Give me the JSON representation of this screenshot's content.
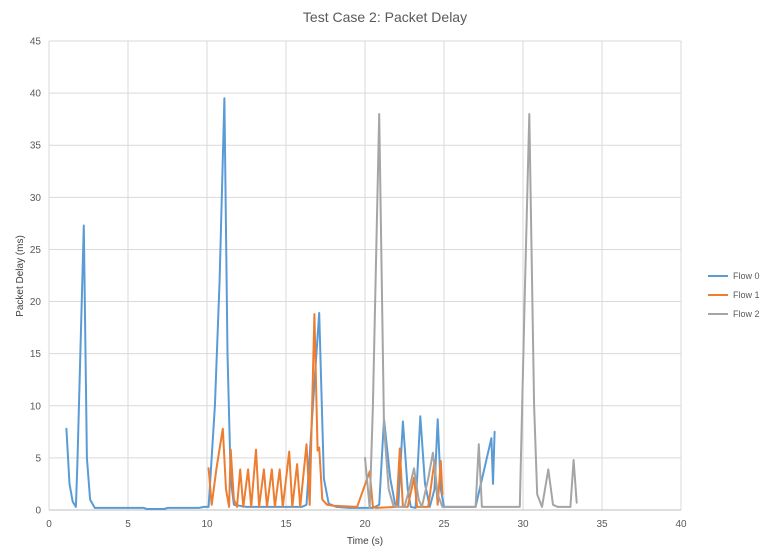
{
  "chart_data": {
    "type": "line",
    "title": "Test Case 2: Packet Delay",
    "xlabel": "Time (s)",
    "ylabel": "Packet Delay (ms)",
    "xlim": [
      0,
      40
    ],
    "ylim": [
      0,
      45
    ],
    "xticks": [
      0,
      5,
      10,
      15,
      20,
      25,
      30,
      35,
      40
    ],
    "yticks": [
      0,
      5,
      10,
      15,
      20,
      25,
      30,
      35,
      40,
      45
    ],
    "grid": true,
    "legend_position": "right",
    "series": [
      {
        "name": "Flow 0",
        "color": "#5B9BD5",
        "points": [
          [
            1.1,
            7.8
          ],
          [
            1.3,
            2.5
          ],
          [
            1.5,
            0.8
          ],
          [
            1.7,
            0.3
          ],
          [
            1.8,
            4.5
          ],
          [
            2.2,
            27.3
          ],
          [
            2.4,
            5.0
          ],
          [
            2.6,
            1.0
          ],
          [
            2.9,
            0.2
          ],
          [
            4.0,
            0.2
          ],
          [
            6.0,
            0.2
          ],
          [
            6.2,
            0.1
          ],
          [
            7.3,
            0.1
          ],
          [
            7.5,
            0.2
          ],
          [
            8.5,
            0.2
          ],
          [
            9.5,
            0.2
          ],
          [
            9.8,
            0.3
          ],
          [
            10.1,
            0.3
          ],
          [
            10.5,
            10.0
          ],
          [
            10.8,
            22.0
          ],
          [
            11.1,
            39.5
          ],
          [
            11.3,
            15.0
          ],
          [
            11.5,
            3.0
          ],
          [
            11.7,
            0.5
          ],
          [
            12.5,
            0.3
          ],
          [
            14.0,
            0.3
          ],
          [
            15.5,
            0.3
          ],
          [
            16.0,
            0.3
          ],
          [
            16.3,
            0.5
          ],
          [
            16.7,
            10.0
          ],
          [
            17.1,
            18.9
          ],
          [
            17.4,
            3.0
          ],
          [
            17.7,
            0.6
          ],
          [
            18.2,
            0.3
          ],
          [
            19.0,
            0.2
          ],
          [
            20.5,
            0.2
          ],
          [
            20.9,
            0.5
          ],
          [
            21.2,
            8.7
          ],
          [
            21.6,
            3.0
          ],
          [
            21.9,
            0.6
          ],
          [
            22.1,
            0.3
          ],
          [
            22.4,
            8.5
          ],
          [
            22.7,
            2.0
          ],
          [
            22.9,
            0.3
          ],
          [
            23.2,
            0.2
          ],
          [
            23.5,
            9.0
          ],
          [
            23.8,
            2.5
          ],
          [
            24.1,
            0.3
          ],
          [
            24.4,
            2.0
          ],
          [
            24.6,
            8.7
          ],
          [
            24.8,
            2.0
          ],
          [
            25.0,
            0.3
          ],
          [
            27.0,
            0.3
          ],
          [
            28.0,
            6.9
          ],
          [
            28.1,
            2.5
          ],
          [
            28.2,
            7.5
          ]
        ]
      },
      {
        "name": "Flow 1",
        "color": "#ED7D31",
        "points": [
          [
            10.1,
            4.0
          ],
          [
            10.3,
            0.5
          ],
          [
            10.6,
            4.0
          ],
          [
            11.0,
            7.8
          ],
          [
            11.2,
            2.0
          ],
          [
            11.4,
            0.3
          ],
          [
            11.5,
            5.8
          ],
          [
            11.7,
            1.0
          ],
          [
            11.9,
            0.3
          ],
          [
            12.1,
            3.9
          ],
          [
            12.3,
            0.3
          ],
          [
            12.6,
            3.9
          ],
          [
            12.8,
            0.3
          ],
          [
            13.1,
            5.8
          ],
          [
            13.3,
            0.3
          ],
          [
            13.6,
            3.9
          ],
          [
            13.8,
            0.3
          ],
          [
            14.1,
            3.9
          ],
          [
            14.3,
            0.3
          ],
          [
            14.6,
            3.9
          ],
          [
            14.8,
            0.3
          ],
          [
            15.2,
            5.6
          ],
          [
            15.4,
            0.3
          ],
          [
            15.7,
            4.4
          ],
          [
            15.9,
            0.3
          ],
          [
            16.3,
            6.3
          ],
          [
            16.5,
            0.5
          ],
          [
            16.8,
            18.8
          ],
          [
            17.0,
            5.7
          ],
          [
            17.1,
            6.0
          ],
          [
            17.3,
            1.0
          ],
          [
            17.6,
            0.5
          ],
          [
            18.0,
            0.4
          ],
          [
            19.5,
            0.3
          ],
          [
            20.3,
            3.7
          ],
          [
            20.5,
            0.3
          ],
          [
            20.7,
            0.2
          ],
          [
            22.0,
            0.3
          ],
          [
            22.2,
            5.9
          ],
          [
            22.4,
            0.3
          ],
          [
            22.7,
            0.3
          ],
          [
            23.1,
            3.1
          ],
          [
            23.3,
            0.3
          ],
          [
            24.0,
            0.3
          ],
          [
            24.4,
            4.7
          ],
          [
            24.6,
            0.5
          ],
          [
            24.8,
            4.7
          ],
          [
            24.9,
            1.5
          ]
        ]
      },
      {
        "name": "Flow 2",
        "color": "#A5A5A5",
        "points": [
          [
            20.0,
            5.0
          ],
          [
            20.3,
            0.2
          ],
          [
            20.5,
            10.0
          ],
          [
            20.9,
            38.0
          ],
          [
            21.2,
            8.0
          ],
          [
            21.5,
            2.0
          ],
          [
            21.8,
            0.4
          ],
          [
            22.2,
            0.3
          ],
          [
            22.5,
            0.3
          ],
          [
            22.8,
            2.0
          ],
          [
            23.1,
            4.0
          ],
          [
            23.4,
            1.0
          ],
          [
            23.6,
            0.3
          ],
          [
            24.0,
            3.0
          ],
          [
            24.3,
            5.5
          ],
          [
            24.6,
            1.5
          ],
          [
            24.9,
            0.3
          ],
          [
            27.0,
            0.3
          ],
          [
            27.2,
            6.3
          ],
          [
            27.4,
            0.3
          ],
          [
            28.0,
            0.3
          ],
          [
            29.8,
            0.3
          ],
          [
            30.1,
            20.0
          ],
          [
            30.4,
            38.0
          ],
          [
            30.7,
            10.0
          ],
          [
            30.9,
            1.5
          ],
          [
            31.2,
            0.3
          ],
          [
            31.6,
            3.9
          ],
          [
            31.9,
            0.5
          ],
          [
            32.2,
            0.3
          ],
          [
            33.0,
            0.3
          ],
          [
            33.2,
            4.8
          ],
          [
            33.4,
            0.7
          ]
        ]
      }
    ]
  }
}
